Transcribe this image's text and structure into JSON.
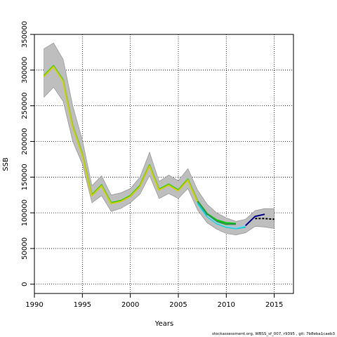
{
  "chart_data": {
    "type": "line",
    "xlabel": "Years",
    "ylabel": "SSB",
    "xlim": [
      1990,
      2017
    ],
    "ylim": [
      -13000,
      350000
    ],
    "x_ticks": [
      1990,
      1995,
      2000,
      2005,
      2010,
      2015
    ],
    "y_ticks": [
      0,
      50000,
      100000,
      150000,
      200000,
      250000,
      300000,
      350000
    ],
    "grid": true,
    "confidence_band": {
      "x": [
        1991,
        1992,
        1993,
        1994,
        1995,
        1996,
        1997,
        1998,
        1999,
        2000,
        2001,
        2002,
        2003,
        2004,
        2005,
        2006,
        2007,
        2008,
        2009,
        2010,
        2011,
        2012,
        2013,
        2014,
        2015
      ],
      "upper": [
        330000,
        338000,
        315000,
        250000,
        202000,
        138000,
        152000,
        125000,
        128000,
        134000,
        150000,
        185000,
        144000,
        153000,
        145000,
        162000,
        132000,
        112000,
        100000,
        93000,
        88000,
        91000,
        103000,
        106000,
        106000
      ],
      "lower": [
        262000,
        276000,
        256000,
        200000,
        168000,
        114000,
        124000,
        102000,
        106000,
        114000,
        126000,
        152000,
        120000,
        127000,
        120000,
        134000,
        104000,
        86000,
        77000,
        71000,
        69000,
        72000,
        81000,
        80000,
        78000
      ],
      "color": "#bebebe"
    },
    "series": [
      {
        "color": "#00cd00",
        "x": [
          1991,
          1992,
          1993,
          1994,
          1995,
          1996,
          1997,
          1998,
          1999,
          2000,
          2001,
          2002,
          2003,
          2004,
          2005,
          2006,
          2007,
          2008,
          2009,
          2010,
          2011
        ],
        "values": [
          292000,
          306000,
          286000,
          222000,
          183000,
          125000,
          139000,
          114000,
          117000,
          124000,
          138000,
          167000,
          133000,
          140000,
          132000,
          147000,
          117000,
          99000,
          90000,
          86000,
          85000
        ]
      },
      {
        "color": "#cdcd00",
        "x": [
          1991,
          1992,
          1993,
          1994,
          1995,
          1996,
          1997,
          1998,
          1999,
          2000,
          2001,
          2002,
          2003,
          2004,
          2005,
          2006,
          2007,
          2008,
          2009,
          2010
        ],
        "values": [
          291000,
          305000,
          285000,
          221000,
          182000,
          124000,
          138000,
          113000,
          116000,
          123000,
          137000,
          166000,
          132000,
          139000,
          131000,
          146000,
          116000,
          98000,
          88000,
          82000
        ]
      },
      {
        "color": "#2e8b57",
        "x": [
          2007,
          2008,
          2009,
          2010,
          2011
        ],
        "values": [
          116000,
          98000,
          88000,
          84000,
          84000
        ]
      },
      {
        "color": "#00ced1",
        "x": [
          2007,
          2008,
          2009,
          2010,
          2011,
          2012
        ],
        "values": [
          114000,
          95000,
          85000,
          80000,
          78000,
          80000
        ]
      },
      {
        "color": "#87ceeb",
        "x": [
          2008,
          2009,
          2010,
          2011,
          2012
        ],
        "values": [
          96000,
          86000,
          81000,
          79000,
          82000
        ]
      },
      {
        "color": "#00008b",
        "x": [
          2012,
          2013,
          2014
        ],
        "values": [
          82000,
          95000,
          98000
        ]
      },
      {
        "color": "#000000",
        "dashed": true,
        "x": [
          2013,
          2014,
          2015
        ],
        "values": [
          92000,
          92000,
          91000
        ]
      }
    ]
  },
  "footnote": "stockassessment.org, WBSS_sf_007, r9395 , git: 7b8eba1caeb3"
}
